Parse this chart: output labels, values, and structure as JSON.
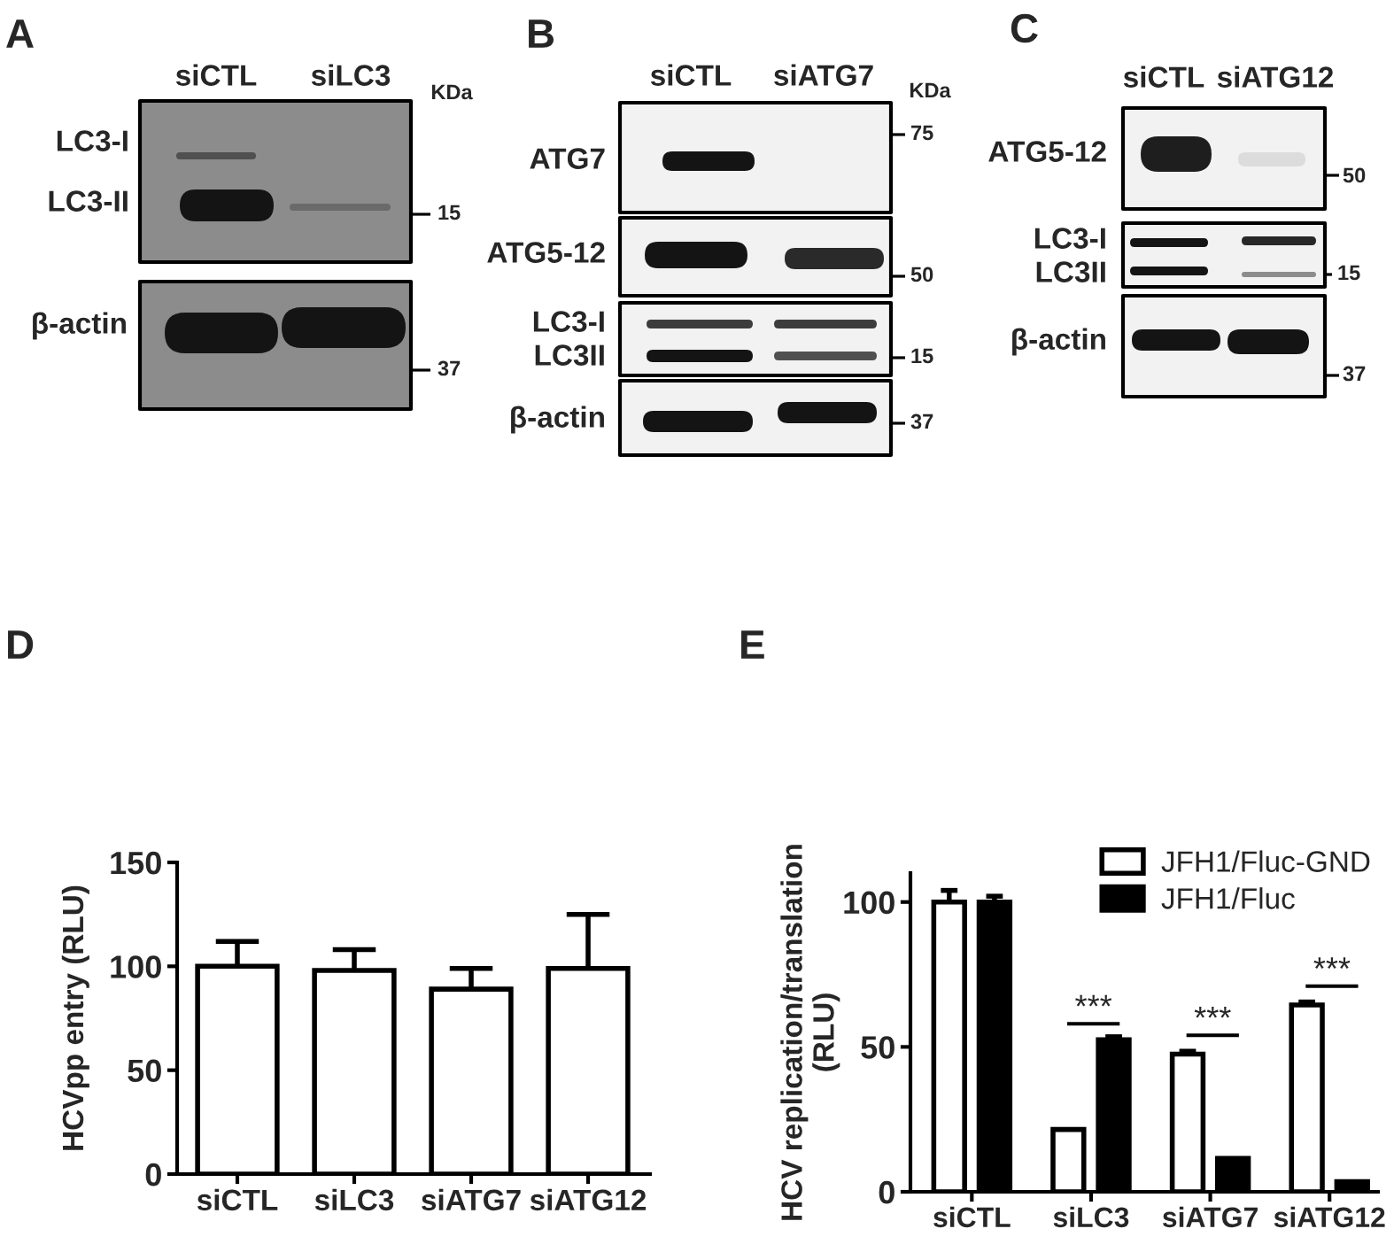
{
  "chart_data": [
    {
      "type": "other",
      "title": "A",
      "annotations": [
        "siCTL",
        "siLC3",
        "KDa",
        "LC3-I",
        "LC3-II",
        "15",
        "β-actin",
        "37"
      ]
    },
    {
      "type": "other",
      "title": "B",
      "annotations": [
        "siCTL",
        "siATG7",
        "KDa",
        "ATG7",
        "75",
        "ATG5-12",
        "50",
        "LC3-I",
        "LC3II",
        "15",
        "β-actin",
        "37"
      ]
    },
    {
      "type": "other",
      "title": "C",
      "annotations": [
        "siCTL",
        "siATG12",
        "ATG5-12",
        "50",
        "LC3-I",
        "LC3II",
        "15",
        "β-actin",
        "37"
      ]
    },
    {
      "type": "bar",
      "title": "D",
      "categories": [
        "siCTL",
        "siLC3",
        "siATG7",
        "siATG12"
      ],
      "values": [
        100,
        98,
        89,
        99
      ],
      "errors": [
        12,
        10,
        10,
        26
      ],
      "color": "#ffffff",
      "ylabel": "HCVpp entry (RLU)",
      "ylim": [
        0,
        150
      ],
      "yticks": [
        0,
        50,
        100,
        150
      ]
    },
    {
      "type": "bar",
      "title": "E",
      "categories": [
        "siCTL",
        "siLC3",
        "siATG7",
        "siATG12"
      ],
      "series": [
        {
          "name": "JFH1/Fluc-GND",
          "color": "#ffffff",
          "values": [
            100,
            21.5,
            47.5,
            64.5
          ],
          "errors": [
            4,
            null,
            1,
            1
          ]
        },
        {
          "name": "JFH1/Fluc",
          "color": "#000000",
          "values": [
            100,
            52.5,
            11.5,
            3.5
          ],
          "errors": [
            2,
            1,
            null,
            null
          ]
        }
      ],
      "ylabel": "HCV replication/translation\n(RLU)",
      "ylim": [
        0,
        110
      ],
      "yticks": [
        0,
        50,
        100
      ],
      "legend": "top right",
      "annotations": [
        "***",
        "***",
        "***"
      ]
    }
  ]
}
